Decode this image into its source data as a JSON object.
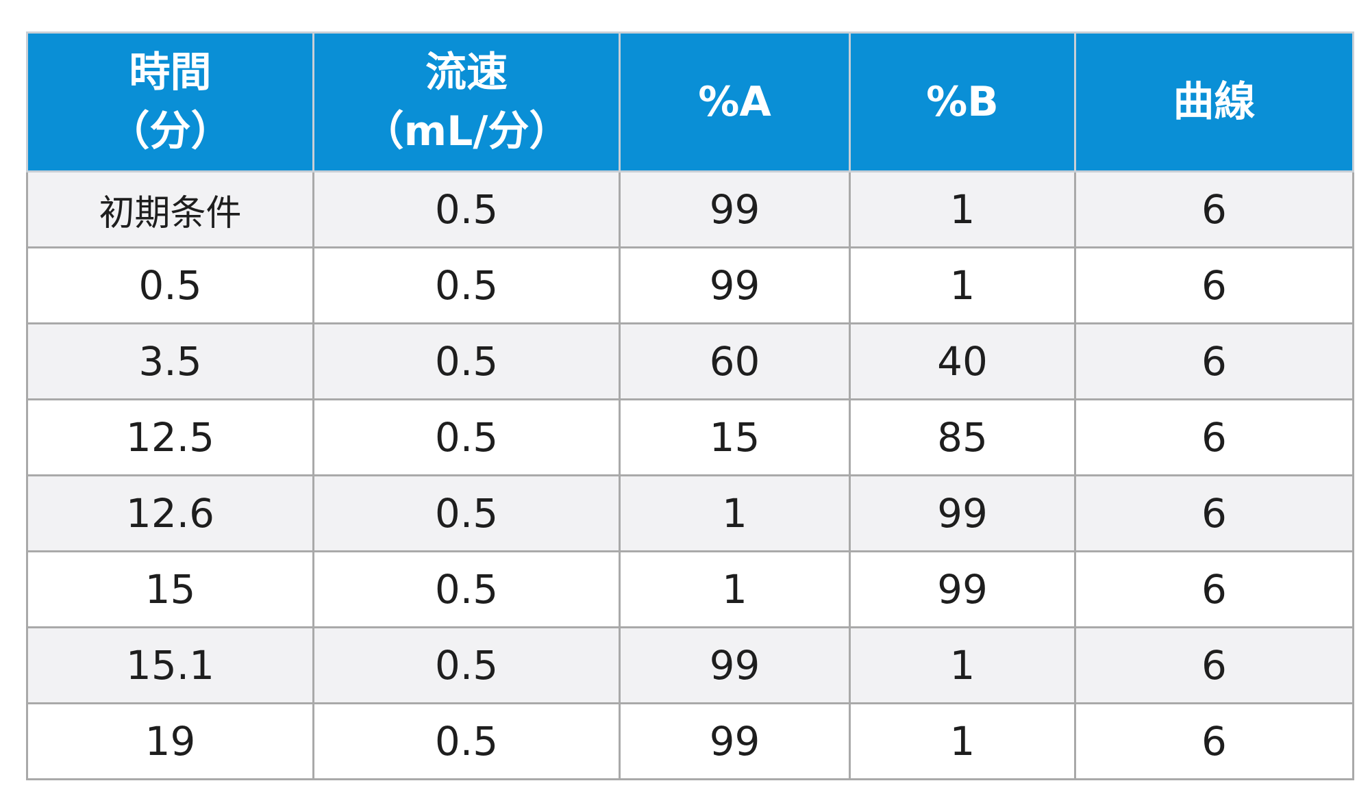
{
  "table": {
    "headers": [
      "時間\n（分）",
      "流速\n（mL/分）",
      "%A",
      "%B",
      "曲線"
    ],
    "rows": [
      [
        "初期条件",
        "0.5",
        "99",
        "1",
        "6"
      ],
      [
        "0.5",
        "0.5",
        "99",
        "1",
        "6"
      ],
      [
        "3.5",
        "0.5",
        "60",
        "40",
        "6"
      ],
      [
        "12.5",
        "0.5",
        "15",
        "85",
        "6"
      ],
      [
        "12.6",
        "0.5",
        "1",
        "99",
        "6"
      ],
      [
        "15",
        "0.5",
        "1",
        "99",
        "6"
      ],
      [
        "15.1",
        "0.5",
        "99",
        "1",
        "6"
      ],
      [
        "19",
        "0.5",
        "99",
        "1",
        "6"
      ]
    ]
  },
  "colors": {
    "header_bg": "#0a8fd6",
    "header_text": "#ffffff",
    "row_alt_bg": "#f2f2f4",
    "border": "#a9a9a9"
  }
}
